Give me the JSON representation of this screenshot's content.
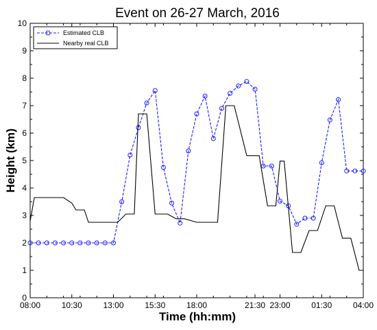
{
  "chart_data": {
    "type": "line",
    "title": "Event on 26-27 March, 2016",
    "xlabel": "Time (hh:mm)",
    "ylabel": "Height (km)",
    "xlim": [
      8.0,
      28.0
    ],
    "ylim": [
      0,
      10
    ],
    "x_unit": "hours since 08:00 on 26 March",
    "xticks": [
      8.0,
      10.5,
      13.0,
      15.5,
      18.0,
      21.5,
      23.0,
      25.5,
      28.0
    ],
    "xtick_labels": [
      "08:00",
      "10:30",
      "13:00",
      "15:30",
      "18:00",
      "21:30",
      "23:00",
      "01:30",
      "04:00"
    ],
    "yticks": [
      0,
      1,
      2,
      3,
      4,
      5,
      6,
      7,
      8,
      9,
      10
    ],
    "ytick_labels": [
      "0",
      "1",
      "2",
      "3",
      "4",
      "5",
      "6",
      "7",
      "8",
      "9",
      "10"
    ],
    "grid": false,
    "legend_position": "top-left",
    "series": [
      {
        "name": "Estimated CLB",
        "color": "#1a1aff",
        "line_style": "dashed",
        "marker": "circle",
        "x": [
          8.0,
          8.5,
          9.0,
          9.5,
          10.0,
          10.5,
          11.0,
          11.5,
          12.0,
          12.5,
          13.0,
          13.5,
          14.0,
          14.5,
          15.0,
          15.5,
          16.0,
          16.5,
          17.0,
          17.5,
          18.0,
          18.5,
          19.0,
          19.5,
          20.0,
          20.5,
          21.0,
          21.5,
          22.0,
          22.5,
          23.0,
          23.5,
          24.0,
          24.5,
          25.0,
          25.5,
          26.0,
          26.5,
          27.0,
          27.5,
          28.0
        ],
        "y": [
          2.0,
          2.0,
          2.0,
          2.0,
          2.0,
          2.0,
          2.0,
          2.0,
          2.0,
          2.0,
          2.0,
          3.5,
          5.2,
          6.2,
          7.1,
          7.55,
          4.75,
          3.45,
          2.72,
          5.35,
          6.7,
          7.35,
          5.8,
          6.9,
          7.45,
          7.72,
          7.88,
          7.6,
          4.8,
          4.8,
          3.52,
          3.35,
          2.68,
          2.9,
          2.9,
          4.92,
          6.48,
          7.22,
          4.62,
          4.62,
          4.62
        ]
      },
      {
        "name": "Nearby real CLB",
        "color": "#000000",
        "line_style": "solid",
        "marker": "none",
        "x": [
          8.0,
          8.25,
          10.0,
          10.5,
          10.75,
          11.25,
          11.5,
          13.0,
          13.25,
          13.75,
          14.25,
          14.5,
          15.0,
          15.5,
          16.25,
          16.75,
          17.25,
          18.0,
          19.25,
          19.75,
          20.25,
          21.0,
          21.75,
          22.25,
          22.75,
          23.0,
          23.25,
          23.75,
          24.25,
          24.75,
          25.25,
          25.75,
          26.25,
          26.75,
          27.25,
          27.75,
          28.0
        ],
        "y": [
          2.8,
          3.65,
          3.65,
          3.45,
          3.2,
          3.2,
          2.75,
          2.75,
          2.75,
          3.05,
          3.05,
          6.7,
          6.7,
          3.05,
          3.05,
          2.88,
          2.88,
          2.75,
          2.75,
          7.0,
          7.0,
          5.18,
          5.18,
          3.35,
          3.35,
          4.98,
          4.98,
          1.65,
          1.65,
          2.45,
          2.45,
          3.35,
          3.35,
          2.17,
          2.17,
          1.0,
          1.0
        ]
      }
    ]
  }
}
